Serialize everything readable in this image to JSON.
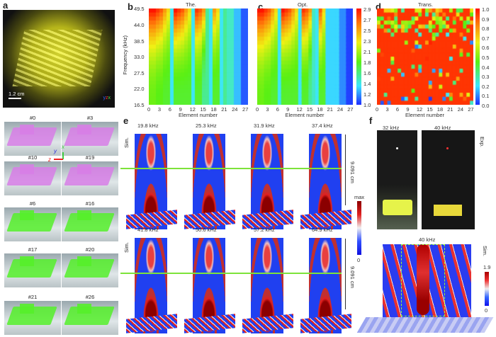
{
  "panels": {
    "a": "a",
    "b": "b",
    "c": "c",
    "d": "d",
    "e": "e",
    "f": "f"
  },
  "panel_a": {
    "scale_bar": "1.2 cm",
    "axes": {
      "x": "x",
      "y": "y",
      "z": "z"
    },
    "tiles": [
      {
        "label": "#0",
        "color": "#d77ee6"
      },
      {
        "label": "#3",
        "color": "#d77ee6"
      },
      {
        "label": "#10",
        "color": "#d77ee6"
      },
      {
        "label": "#19",
        "color": "#d77ee6"
      },
      {
        "label": "#6",
        "color": "#55f02a"
      },
      {
        "label": "#16",
        "color": "#55f02a"
      },
      {
        "label": "#17",
        "color": "#55f02a"
      },
      {
        "label": "#20",
        "color": "#55f02a"
      },
      {
        "label": "#21",
        "color": "#55f02a"
      },
      {
        "label": "#26",
        "color": "#55f02a"
      }
    ]
  },
  "chart_data": [
    {
      "type": "heatmap",
      "title": "The.",
      "xlabel": "Element number",
      "ylabel": "Frequency (kHz)",
      "x_ticks": [
        "0",
        "3",
        "6",
        "9",
        "12",
        "15",
        "18",
        "21",
        "24",
        "27"
      ],
      "y_ticks": [
        "16.5",
        "22.0",
        "27.5",
        "33.0",
        "38.5",
        "44.0",
        "49.5"
      ],
      "xlim": [
        0,
        27
      ],
      "ylim": [
        16.5,
        49.5
      ],
      "values_at_49_5kHz": [
        1.9,
        1.9,
        1.85,
        1.85,
        1.8,
        1.8,
        1.4,
        1.8,
        1.8,
        1.8,
        1.8,
        1.8,
        1.4,
        1.8,
        1.8,
        1.6,
        1.6,
        1.4,
        1.8,
        1.8,
        1.4,
        1.6,
        1.5,
        1.5,
        1.3,
        1.3,
        1.1,
        1.1
      ],
      "values_at_16_5kHz": [
        2.9,
        2.9,
        2.8,
        2.7,
        2.5,
        2.3,
        1.4,
        2.9,
        2.8,
        2.7,
        2.5,
        2.3,
        1.4,
        2.8,
        2.7,
        2.5,
        1.6,
        1.4,
        2.5,
        2.3,
        1.4,
        1.6,
        1.5,
        1.5,
        1.3,
        1.3,
        1.1,
        1.1
      ]
    },
    {
      "type": "heatmap",
      "title": "Opt.",
      "xlabel": "Element number",
      "x_ticks": [
        "0",
        "3",
        "6",
        "9",
        "12",
        "15",
        "18",
        "21",
        "24",
        "27"
      ],
      "xlim": [
        0,
        27
      ],
      "ylim": [
        16.5,
        49.5
      ],
      "colorbar": {
        "min": 1.0,
        "max": 2.9,
        "ticks": [
          "2.9",
          "2.7",
          "2.5",
          "2.3",
          "2.1",
          "1.8",
          "1.6",
          "1.4",
          "1.2",
          "1.0"
        ]
      },
      "values_at_49_5kHz": [
        1.9,
        1.9,
        1.85,
        1.85,
        1.8,
        1.8,
        1.4,
        1.8,
        1.8,
        1.8,
        1.8,
        1.8,
        1.4,
        1.8,
        1.8,
        1.6,
        1.5,
        1.4,
        1.8,
        1.8,
        1.35,
        1.35,
        1.35,
        1.35,
        1.2,
        1.2,
        1.05,
        1.05
      ],
      "values_at_16_5kHz": [
        2.9,
        2.9,
        2.8,
        2.7,
        2.5,
        2.3,
        1.4,
        2.9,
        2.8,
        2.7,
        2.5,
        2.3,
        1.4,
        2.8,
        2.7,
        2.5,
        1.5,
        1.4,
        2.7,
        2.3,
        1.35,
        1.35,
        1.35,
        1.35,
        1.2,
        1.2,
        1.05,
        1.05
      ]
    },
    {
      "type": "heatmap",
      "title": "Trans.",
      "xlabel": "Element number",
      "x_ticks": [
        "0",
        "3",
        "6",
        "9",
        "12",
        "15",
        "18",
        "21",
        "24",
        "27"
      ],
      "xlim": [
        0,
        27
      ],
      "ylim": [
        16.5,
        49.5
      ],
      "colorbar": {
        "min": 0.0,
        "max": 1.0,
        "ticks": [
          "1.0",
          "0.9",
          "0.8",
          "0.7",
          "0.6",
          "0.5",
          "0.4",
          "0.3",
          "0.2",
          "0.1",
          "0.0"
        ]
      },
      "description_dominant_value": 0.95
    }
  ],
  "panel_e": {
    "row_label": "Sim.",
    "frequencies_top": [
      "19.8 kHz",
      "25.3 kHz",
      "31.9 kHz",
      "37.4 kHz"
    ],
    "frequencies_bottom": [
      "41.8 kHz",
      "50.6 kHz",
      "57.2 kHz",
      "64.9 kHz"
    ],
    "distance": "9.091 cm",
    "colorbar": {
      "max": "max",
      "min": "0"
    }
  },
  "panel_f": {
    "photos": [
      "32 kHz",
      "40 kHz"
    ],
    "exp_label": "Exp.",
    "sim_title": "40 kHz",
    "sim_label": "Sim.",
    "colorbar": {
      "max": "1.9",
      "min": "0"
    }
  },
  "colors": {
    "jet_low": "#1e3cff",
    "jet_high": "#ff1a00",
    "green_line": "#7ee33a"
  }
}
